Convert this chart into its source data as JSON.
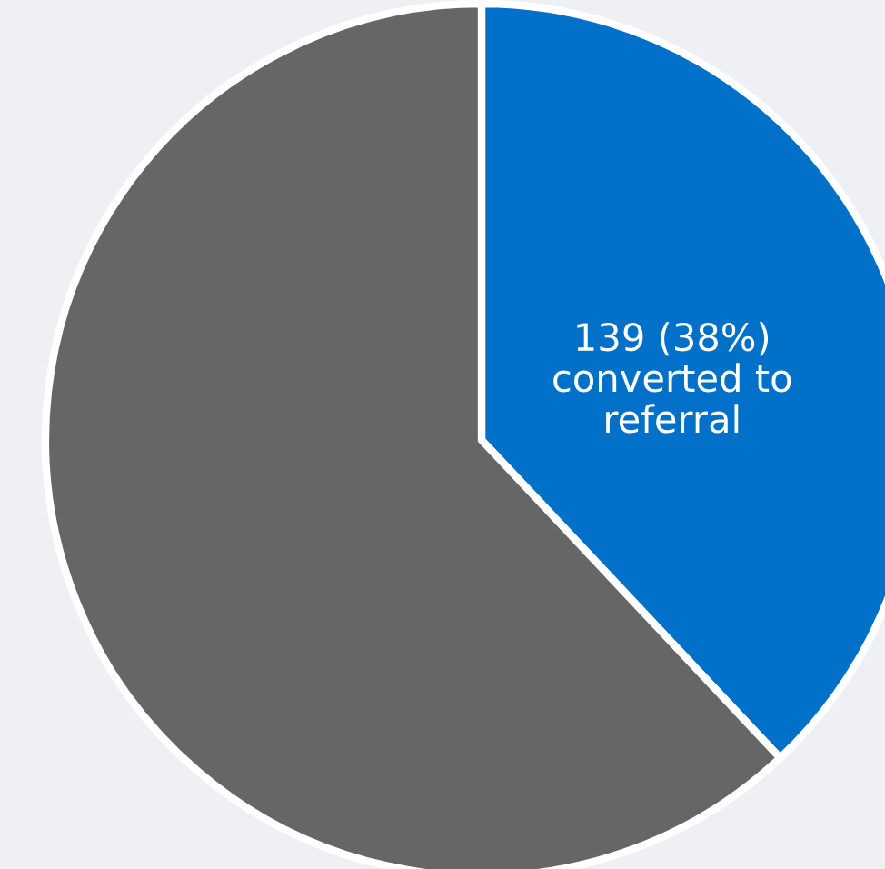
{
  "chart_data": {
    "type": "pie",
    "categories": [
      "converted to referral",
      null
    ],
    "values": [
      38,
      62
    ],
    "value_labels": [
      "139 (38%)",
      null
    ],
    "colors": [
      "#0070c8",
      "#666666"
    ]
  }
}
